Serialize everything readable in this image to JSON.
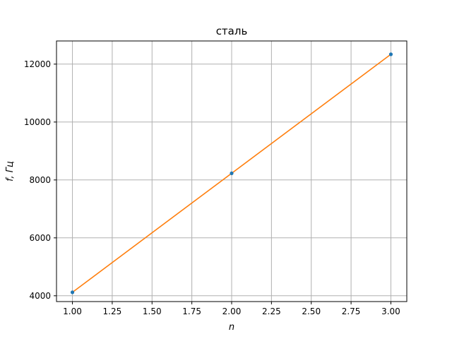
{
  "chart_data": {
    "type": "line",
    "title": "сталь",
    "xlabel": "n",
    "ylabel": "f, Гц",
    "xlim": [
      0.9,
      3.1
    ],
    "ylim": [
      3800,
      12800
    ],
    "xticks": [
      1.0,
      1.25,
      1.5,
      1.75,
      2.0,
      2.25,
      2.5,
      2.75,
      3.0
    ],
    "xtick_labels": [
      "1.00",
      "1.25",
      "1.50",
      "1.75",
      "2.00",
      "2.25",
      "2.50",
      "2.75",
      "3.00"
    ],
    "yticks": [
      4000,
      6000,
      8000,
      10000,
      12000
    ],
    "ytick_labels": [
      "4000",
      "6000",
      "8000",
      "10000",
      "12000"
    ],
    "grid": true,
    "series": [
      {
        "kind": "scatter",
        "color": "#1f77b4",
        "x": [
          1,
          2,
          3
        ],
        "y": [
          4120,
          8230,
          12340
        ]
      },
      {
        "kind": "line",
        "color": "#ff7f0e",
        "x": [
          1,
          3
        ],
        "y": [
          4120,
          12340
        ]
      }
    ]
  }
}
